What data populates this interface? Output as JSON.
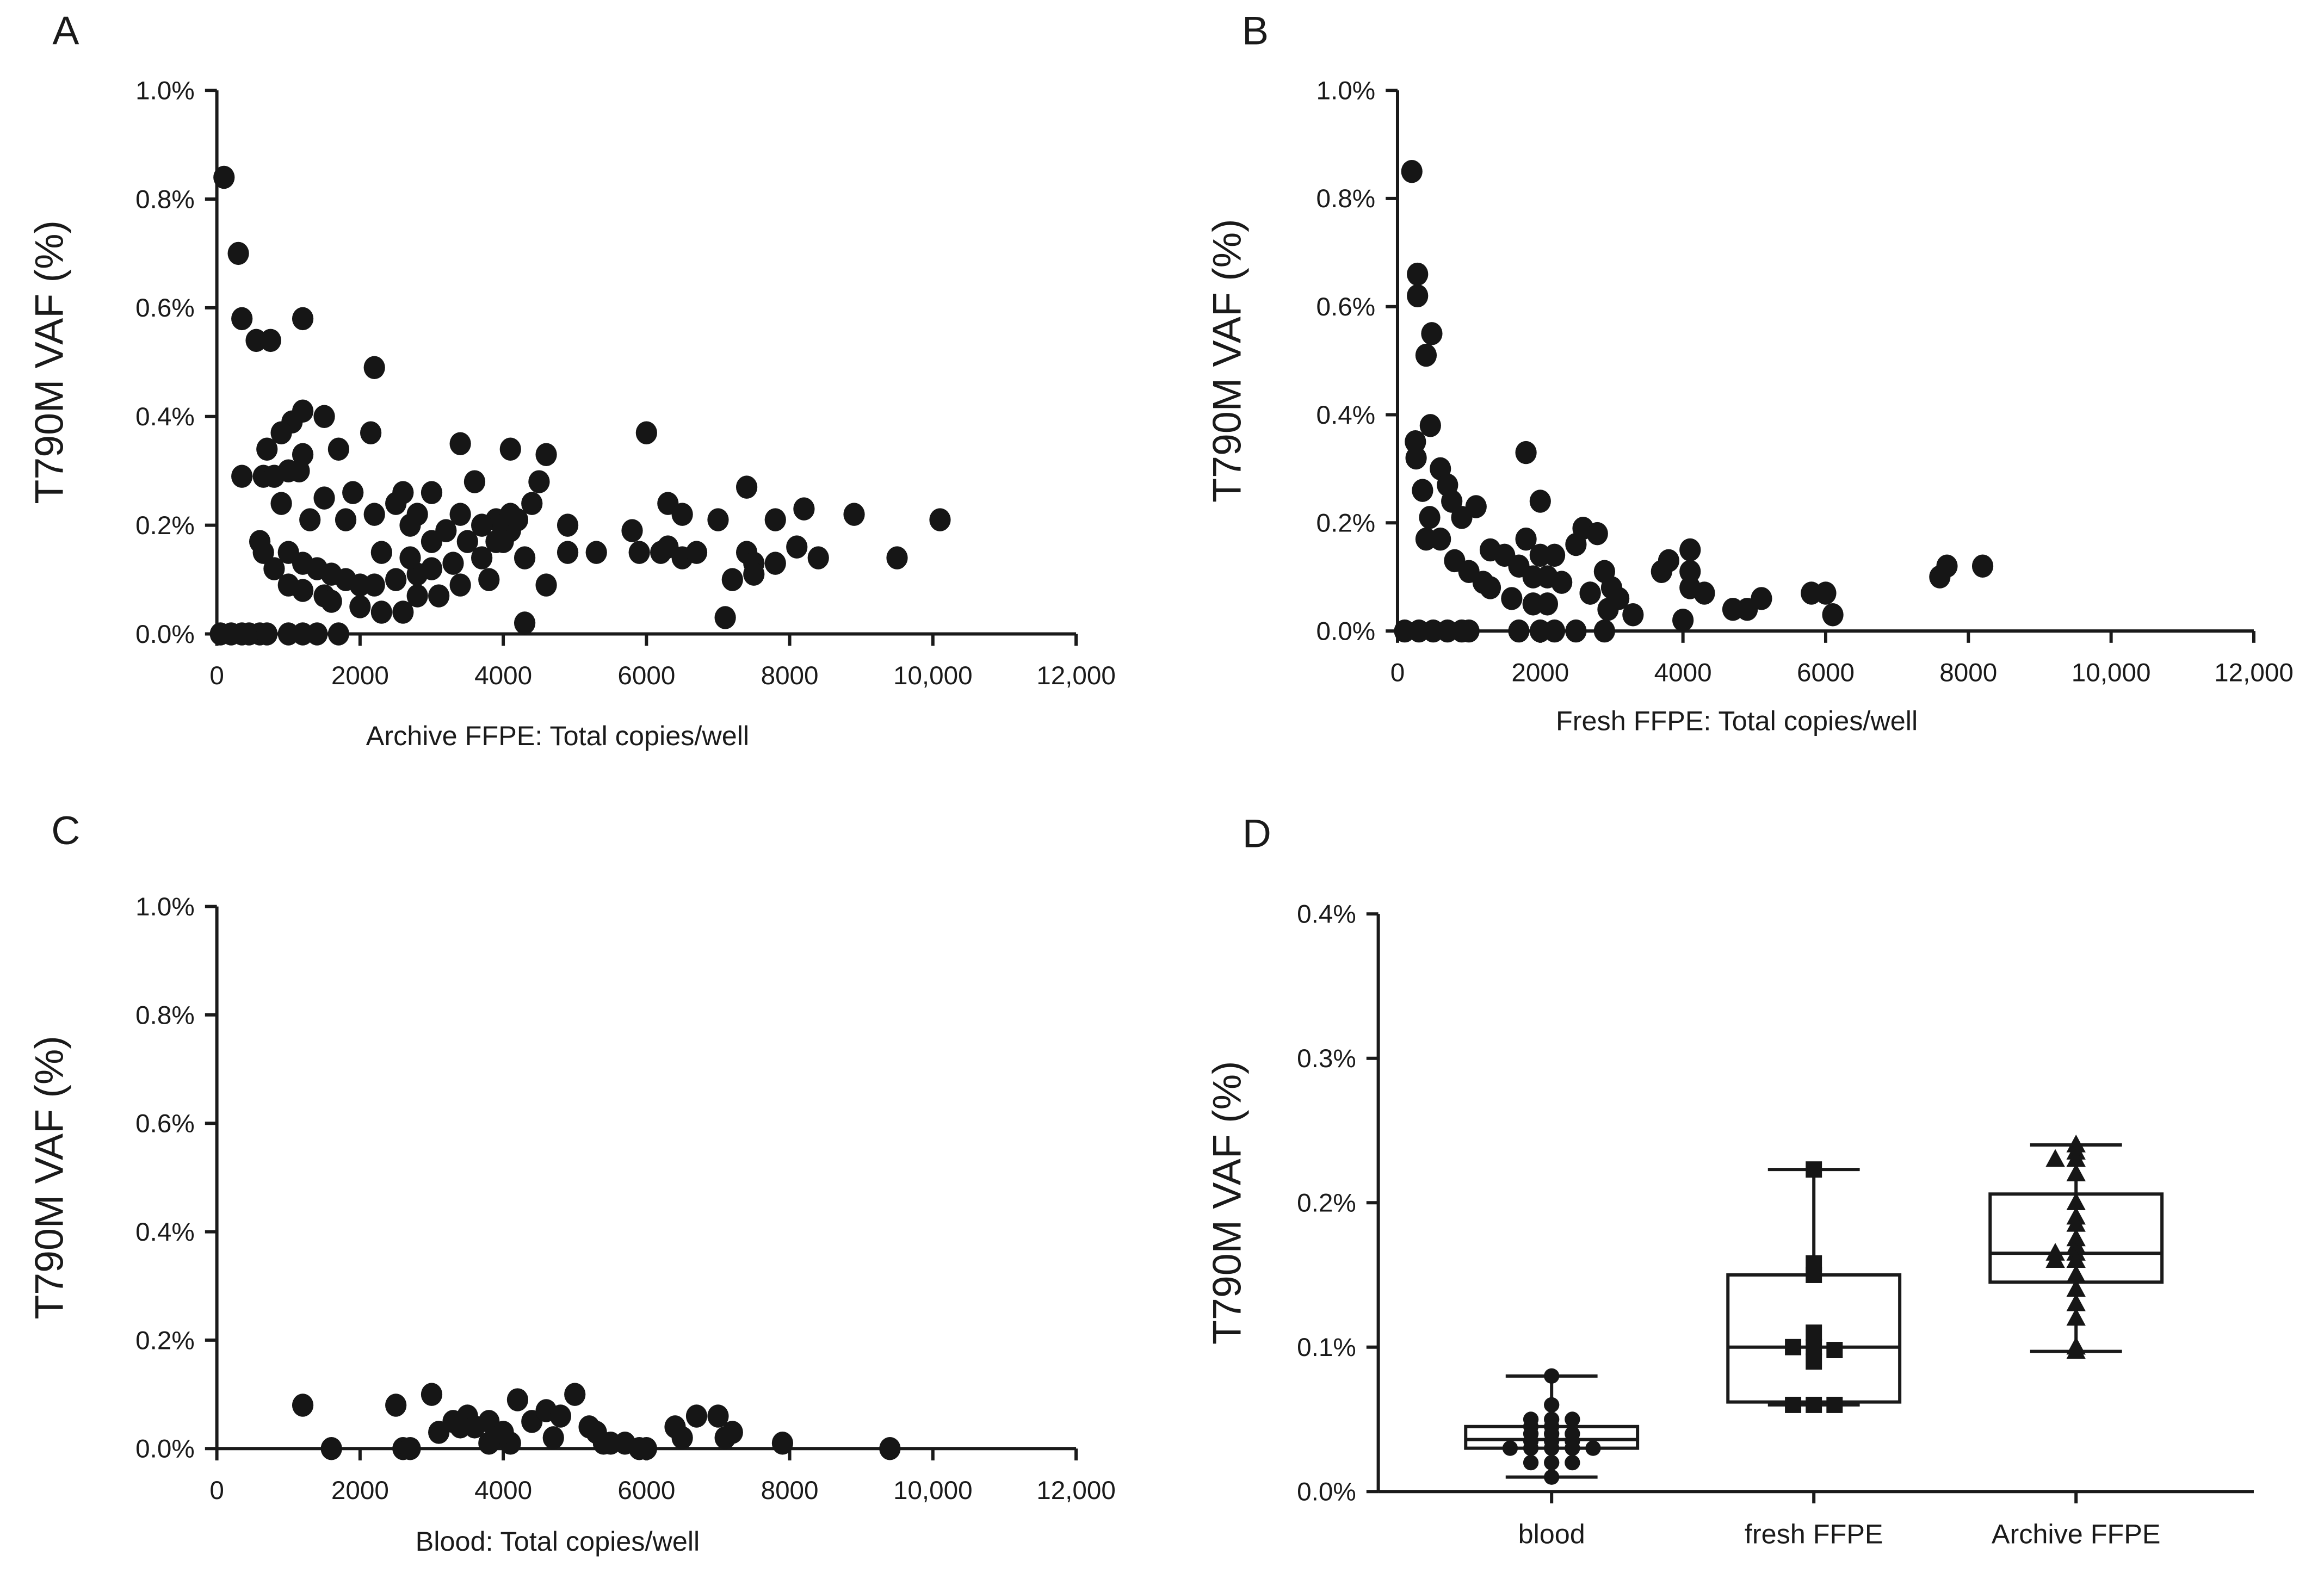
{
  "chart_data": [
    {
      "panel": "A",
      "type": "scatter",
      "xlabel": "Archive FFPE:  Total copies/well",
      "ylabel": "T790M VAF (%)",
      "xlim": [
        0,
        12000
      ],
      "ylim": [
        0,
        1.0
      ],
      "xticks": [
        "0",
        "2000",
        "4000",
        "6000",
        "8000",
        "10,000",
        "12,000"
      ],
      "yticks": [
        "0.0%",
        "0.2%",
        "0.4%",
        "0.6%",
        "0.8%",
        "1.0%"
      ],
      "marker": "circle",
      "points": [
        [
          100,
          0.84
        ],
        [
          300,
          0.7
        ],
        [
          350,
          0.58
        ],
        [
          550,
          0.54
        ],
        [
          750,
          0.54
        ],
        [
          1200,
          0.58
        ],
        [
          2200,
          0.49
        ],
        [
          1200,
          0.41
        ],
        [
          1500,
          0.4
        ],
        [
          1050,
          0.39
        ],
        [
          900,
          0.37
        ],
        [
          2150,
          0.37
        ],
        [
          700,
          0.34
        ],
        [
          1700,
          0.34
        ],
        [
          1200,
          0.33
        ],
        [
          3400,
          0.35
        ],
        [
          4100,
          0.34
        ],
        [
          4600,
          0.33
        ],
        [
          6000,
          0.37
        ],
        [
          350,
          0.29
        ],
        [
          650,
          0.29
        ],
        [
          800,
          0.29
        ],
        [
          1000,
          0.3
        ],
        [
          1150,
          0.3
        ],
        [
          1900,
          0.26
        ],
        [
          2600,
          0.26
        ],
        [
          3000,
          0.26
        ],
        [
          3600,
          0.28
        ],
        [
          4500,
          0.28
        ],
        [
          7400,
          0.27
        ],
        [
          6300,
          0.24
        ],
        [
          1500,
          0.25
        ],
        [
          2500,
          0.24
        ],
        [
          900,
          0.24
        ],
        [
          4400,
          0.24
        ],
        [
          8200,
          0.23
        ],
        [
          8900,
          0.22
        ],
        [
          10100,
          0.21
        ],
        [
          7000,
          0.21
        ],
        [
          7800,
          0.21
        ],
        [
          6500,
          0.22
        ],
        [
          2200,
          0.22
        ],
        [
          2800,
          0.22
        ],
        [
          3400,
          0.22
        ],
        [
          3900,
          0.21
        ],
        [
          4000,
          0.2
        ],
        [
          4100,
          0.19
        ],
        [
          4200,
          0.21
        ],
        [
          3700,
          0.2
        ],
        [
          4900,
          0.2
        ],
        [
          600,
          0.17
        ],
        [
          1300,
          0.21
        ],
        [
          1800,
          0.21
        ],
        [
          2700,
          0.2
        ],
        [
          3200,
          0.19
        ],
        [
          3500,
          0.17
        ],
        [
          650,
          0.15
        ],
        [
          800,
          0.12
        ],
        [
          1000,
          0.15
        ],
        [
          1200,
          0.13
        ],
        [
          1400,
          0.12
        ],
        [
          1600,
          0.11
        ],
        [
          1800,
          0.1
        ],
        [
          2000,
          0.09
        ],
        [
          2200,
          0.09
        ],
        [
          2500,
          0.1
        ],
        [
          2800,
          0.11
        ],
        [
          3000,
          0.12
        ],
        [
          3300,
          0.13
        ],
        [
          3700,
          0.14
        ],
        [
          4000,
          0.17
        ],
        [
          4300,
          0.14
        ],
        [
          4900,
          0.15
        ],
        [
          5300,
          0.15
        ],
        [
          5800,
          0.19
        ],
        [
          5900,
          0.15
        ],
        [
          6200,
          0.15
        ],
        [
          6300,
          0.16
        ],
        [
          6500,
          0.14
        ],
        [
          6700,
          0.15
        ],
        [
          7400,
          0.15
        ],
        [
          7500,
          0.13
        ],
        [
          7800,
          0.13
        ],
        [
          8100,
          0.16
        ],
        [
          8400,
          0.14
        ],
        [
          9500,
          0.14
        ],
        [
          7200,
          0.1
        ],
        [
          7500,
          0.11
        ],
        [
          1000,
          0.09
        ],
        [
          1200,
          0.08
        ],
        [
          1500,
          0.07
        ],
        [
          2000,
          0.05
        ],
        [
          2600,
          0.04
        ],
        [
          2800,
          0.07
        ],
        [
          3100,
          0.07
        ],
        [
          3400,
          0.09
        ],
        [
          3800,
          0.1
        ],
        [
          4600,
          0.09
        ],
        [
          4300,
          0.02
        ],
        [
          7100,
          0.03
        ],
        [
          1600,
          0.06
        ],
        [
          2300,
          0.04
        ],
        [
          50,
          0
        ],
        [
          200,
          0
        ],
        [
          350,
          0
        ],
        [
          450,
          0
        ],
        [
          600,
          0
        ],
        [
          700,
          0
        ],
        [
          1000,
          0
        ],
        [
          1200,
          0
        ],
        [
          1400,
          0
        ],
        [
          1700,
          0
        ],
        [
          4100,
          0.22
        ],
        [
          3000,
          0.17
        ],
        [
          3900,
          0.17
        ],
        [
          2300,
          0.15
        ],
        [
          2700,
          0.14
        ]
      ]
    },
    {
      "panel": "B",
      "type": "scatter",
      "xlabel": "Fresh FFPE:  Total copies/well",
      "ylabel": "T790M VAF (%)",
      "xlim": [
        0,
        12000
      ],
      "ylim": [
        0,
        1.0
      ],
      "xticks": [
        "0",
        "2000",
        "4000",
        "6000",
        "8000",
        "10,000",
        "12,000"
      ],
      "yticks": [
        "0.0%",
        "0.2%",
        "0.4%",
        "0.6%",
        "0.8%",
        "1.0%"
      ],
      "marker": "circle",
      "points": [
        [
          200,
          0.85
        ],
        [
          280,
          0.66
        ],
        [
          280,
          0.62
        ],
        [
          480,
          0.55
        ],
        [
          400,
          0.51
        ],
        [
          460,
          0.38
        ],
        [
          250,
          0.35
        ],
        [
          260,
          0.32
        ],
        [
          1800,
          0.33
        ],
        [
          600,
          0.3
        ],
        [
          700,
          0.27
        ],
        [
          760,
          0.24
        ],
        [
          900,
          0.21
        ],
        [
          350,
          0.26
        ],
        [
          450,
          0.21
        ],
        [
          1100,
          0.23
        ],
        [
          2000,
          0.24
        ],
        [
          1300,
          0.15
        ],
        [
          400,
          0.17
        ],
        [
          600,
          0.17
        ],
        [
          800,
          0.13
        ],
        [
          1000,
          0.11
        ],
        [
          1200,
          0.09
        ],
        [
          1300,
          0.08
        ],
        [
          1800,
          0.17
        ],
        [
          2600,
          0.19
        ],
        [
          2800,
          0.18
        ],
        [
          1500,
          0.14
        ],
        [
          1700,
          0.12
        ],
        [
          2000,
          0.14
        ],
        [
          2200,
          0.14
        ],
        [
          2500,
          0.16
        ],
        [
          1900,
          0.1
        ],
        [
          2100,
          0.1
        ],
        [
          2300,
          0.09
        ],
        [
          1600,
          0.06
        ],
        [
          1900,
          0.05
        ],
        [
          2100,
          0.05
        ],
        [
          2700,
          0.07
        ],
        [
          2900,
          0.11
        ],
        [
          3000,
          0.08
        ],
        [
          3100,
          0.06
        ],
        [
          3300,
          0.03
        ],
        [
          3700,
          0.11
        ],
        [
          3800,
          0.13
        ],
        [
          4100,
          0.15
        ],
        [
          4100,
          0.11
        ],
        [
          4100,
          0.08
        ],
        [
          4300,
          0.07
        ],
        [
          4000,
          0.02
        ],
        [
          4700,
          0.04
        ],
        [
          4900,
          0.04
        ],
        [
          5100,
          0.06
        ],
        [
          5800,
          0.07
        ],
        [
          6000,
          0.07
        ],
        [
          6100,
          0.03
        ],
        [
          7600,
          0.1
        ],
        [
          7700,
          0.12
        ],
        [
          8200,
          0.12
        ],
        [
          100,
          0
        ],
        [
          300,
          0
        ],
        [
          500,
          0
        ],
        [
          700,
          0
        ],
        [
          900,
          0
        ],
        [
          1000,
          0
        ],
        [
          1700,
          0
        ],
        [
          2000,
          0
        ],
        [
          2200,
          0
        ],
        [
          2500,
          0
        ],
        [
          2900,
          0
        ],
        [
          2950,
          0.04
        ],
        [
          2700,
          0.07
        ]
      ]
    },
    {
      "panel": "C",
      "type": "scatter",
      "xlabel": "Blood:  Total copies/well",
      "ylabel": "T790M VAF (%)",
      "xlim": [
        0,
        12000
      ],
      "ylim": [
        0,
        1.0
      ],
      "xticks": [
        "0",
        "2000",
        "4000",
        "6000",
        "8000",
        "10,000",
        "12,000"
      ],
      "yticks": [
        "0.0%",
        "0.2%",
        "0.4%",
        "0.6%",
        "0.8%",
        "1.0%"
      ],
      "marker": "circle",
      "points": [
        [
          1200,
          0.08
        ],
        [
          1600,
          0
        ],
        [
          2500,
          0.08
        ],
        [
          2600,
          0
        ],
        [
          2700,
          0
        ],
        [
          3000,
          0.1
        ],
        [
          3100,
          0.03
        ],
        [
          3300,
          0.05
        ],
        [
          3500,
          0.06
        ],
        [
          3600,
          0.04
        ],
        [
          3800,
          0.05
        ],
        [
          3900,
          0.02
        ],
        [
          4100,
          0.01
        ],
        [
          4200,
          0.09
        ],
        [
          4400,
          0.05
        ],
        [
          4600,
          0.07
        ],
        [
          4800,
          0.06
        ],
        [
          5000,
          0.1
        ],
        [
          4700,
          0.02
        ],
        [
          5200,
          0.04
        ],
        [
          5400,
          0.01
        ],
        [
          5500,
          0.01
        ],
        [
          5700,
          0.01
        ],
        [
          5900,
          0
        ],
        [
          6400,
          0.04
        ],
        [
          6700,
          0.06
        ],
        [
          6500,
          0.02
        ],
        [
          7000,
          0.06
        ],
        [
          7100,
          0.02
        ],
        [
          7200,
          0.03
        ],
        [
          7900,
          0.01
        ],
        [
          9400,
          0
        ],
        [
          3400,
          0.04
        ],
        [
          4000,
          0.03
        ],
        [
          3800,
          0.01
        ],
        [
          5300,
          0.03
        ],
        [
          6000,
          0
        ]
      ]
    },
    {
      "panel": "D",
      "type": "box",
      "ylabel": "T790M VAF (%)",
      "ylim": [
        0,
        0.4
      ],
      "yticks": [
        "0.0%",
        "0.1%",
        "0.2%",
        "0.3%",
        "0.4%"
      ],
      "categories": [
        "blood",
        "fresh FFPE",
        "Archive FFPE"
      ],
      "boxes": [
        {
          "name": "blood",
          "marker": "circle",
          "min": 0.01,
          "q1": 0.03,
          "median": 0.036,
          "q3": 0.045,
          "max": 0.08,
          "points": [
            0.08,
            0.06,
            0.05,
            0.05,
            0.05,
            0.045,
            0.045,
            0.04,
            0.04,
            0.04,
            0.035,
            0.035,
            0.035,
            0.03,
            0.03,
            0.03,
            0.03,
            0.03,
            0.02,
            0.02,
            0.02,
            0.01
          ]
        },
        {
          "name": "fresh FFPE",
          "marker": "square",
          "min": 0.06,
          "q1": 0.062,
          "median": 0.1,
          "q3": 0.15,
          "max": 0.223,
          "points": [
            0.223,
            0.158,
            0.15,
            0.11,
            0.1,
            0.1,
            0.098,
            0.09,
            0.06,
            0.06,
            0.06
          ]
        },
        {
          "name": "Archive FFPE",
          "marker": "triangle",
          "min": 0.097,
          "q1": 0.145,
          "median": 0.165,
          "q3": 0.206,
          "max": 0.24,
          "points": [
            0.24,
            0.235,
            0.23,
            0.23,
            0.22,
            0.2,
            0.19,
            0.185,
            0.175,
            0.17,
            0.165,
            0.165,
            0.16,
            0.16,
            0.15,
            0.14,
            0.13,
            0.12,
            0.1,
            0.097
          ]
        }
      ]
    }
  ]
}
